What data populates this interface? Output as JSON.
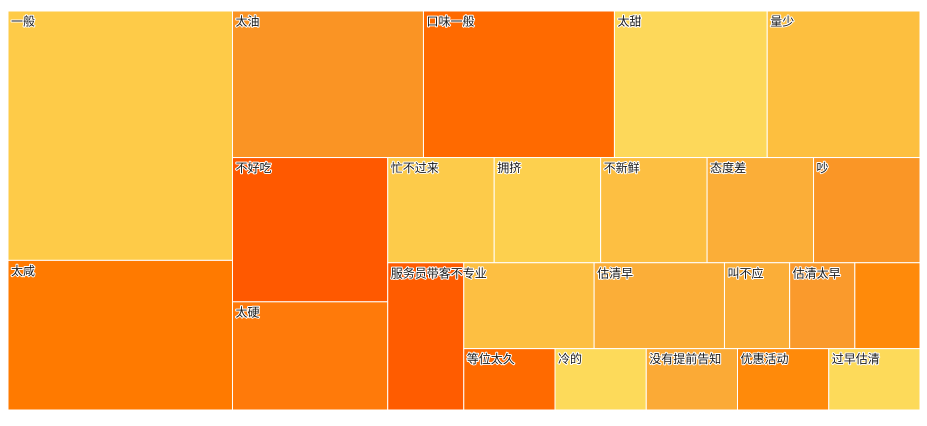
{
  "chart_data": {
    "type": "treemap",
    "categories": [
      "一般",
      "太咸",
      "太油",
      "口味一般",
      "太甜",
      "量少",
      "不好吃",
      "太硬",
      "忙不过来",
      "拥挤",
      "不新鲜",
      "态度差",
      "吵",
      "服务员带客不专业",
      null,
      "估清早",
      "叫不应",
      "估清太早",
      null,
      "等位太久",
      "冷的",
      "没有提前告知",
      "优惠活动",
      "过早估清"
    ],
    "values": [
      10,
      6,
      5,
      5,
      4,
      4,
      4,
      3,
      2,
      2,
      2,
      2,
      2,
      2,
      2,
      2,
      1,
      1,
      1,
      1,
      1,
      1,
      1,
      1
    ],
    "colors": [
      "#fecb48",
      "#ff7a00",
      "#fa9424",
      "#ff6a00",
      "#fdd85a",
      "#fdbf3f",
      "#ff5900",
      "#ff7a0a",
      "#fdcb4a",
      "#fdd04e",
      "#fdbf42",
      "#fbae38",
      "#fa9626",
      "#ff5c00",
      "#fdbf42",
      "#fbae38",
      "#fbae38",
      "#fa9a2c",
      "#ff8a0a",
      "#ff6a00",
      "#fdda5a",
      "#fbaa36",
      "#ff8a0a",
      "#fdda5a"
    ]
  }
}
